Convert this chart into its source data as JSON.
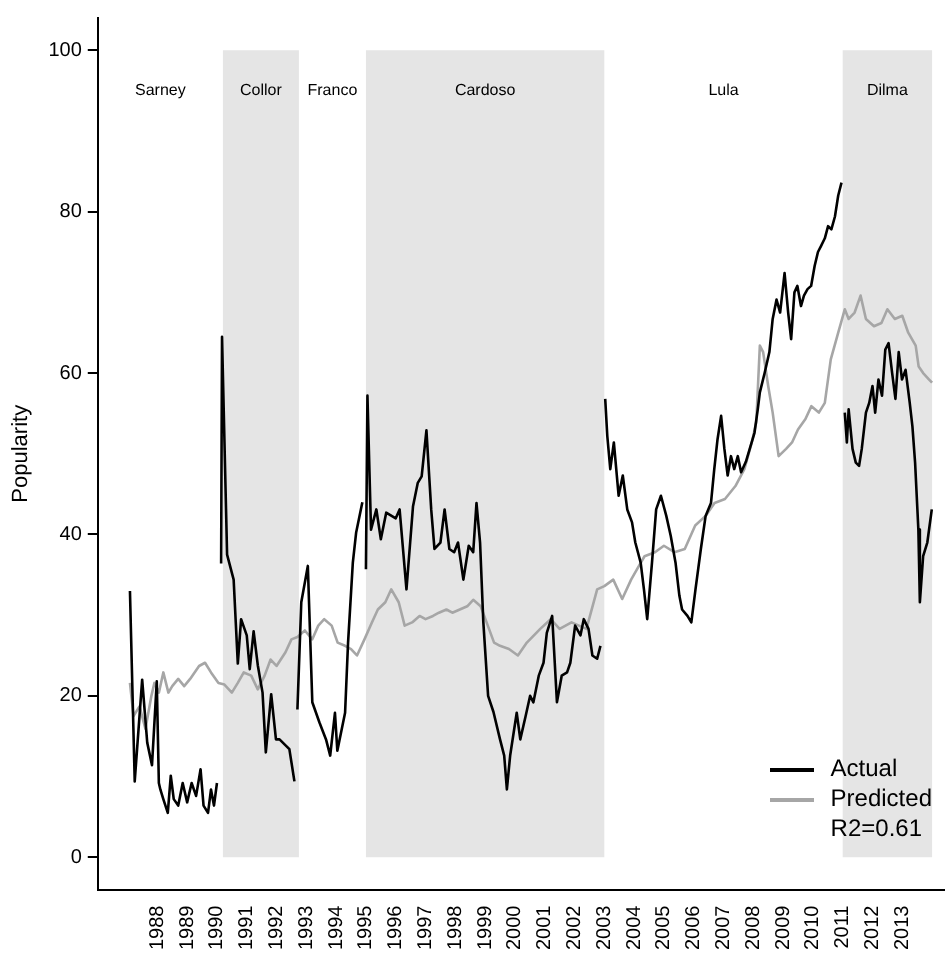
{
  "chart_data": {
    "type": "line",
    "ylabel": "Popularity",
    "xlim": [
      1986,
      2014.4
    ],
    "xticks": [
      1988,
      1989,
      1990,
      1991,
      1992,
      1993,
      1994,
      1995,
      1996,
      1997,
      1998,
      1999,
      2000,
      2001,
      2002,
      2003,
      2004,
      2005,
      2006,
      2007,
      2008,
      2009,
      2010,
      2011,
      2012,
      2013
    ],
    "ylim": [
      -4,
      104
    ],
    "yticks": [
      0,
      20,
      40,
      60,
      80,
      100
    ],
    "series": [
      {
        "name": "Actual",
        "color": "#000000",
        "x": [
          1987.08,
          1987.24,
          1987.49,
          1987.66,
          1987.82,
          1987.98,
          1988.05,
          1988.1,
          1988.2,
          1988.35,
          1988.45,
          1988.55,
          1988.7,
          1988.85,
          1989.0,
          1989.15,
          1989.3,
          1989.45,
          1989.55,
          1989.7,
          1989.8,
          1989.9,
          1990.0,
          1990.08,
          1990.14,
          1990.17,
          1990.34,
          1990.56,
          1990.7,
          1990.81,
          1991.0,
          1991.1,
          1991.23,
          1991.37,
          1991.53,
          1991.64,
          1991.82,
          1991.98,
          1992.1,
          1992.43,
          1992.6,
          1992.65,
          1992.7,
          1992.83,
          1993.05,
          1993.2,
          1993.44,
          1993.66,
          1993.8,
          1993.96,
          1994.04,
          1994.3,
          1994.4,
          1994.56,
          1994.67,
          1994.83,
          1994.88,
          1994.94,
          1995.0,
          1995.05,
          1995.17,
          1995.35,
          1995.5,
          1995.68,
          1996.0,
          1996.13,
          1996.36,
          1996.58,
          1996.74,
          1996.87,
          1997.03,
          1997.19,
          1997.3,
          1997.5,
          1997.64,
          1997.8,
          1997.96,
          1998.09,
          1998.27,
          1998.45,
          1998.6,
          1998.71,
          1998.83,
          1998.94,
          1999.1,
          1999.28,
          1999.5,
          1999.64,
          1999.73,
          1999.84,
          2000.06,
          2000.18,
          2000.36,
          2000.51,
          2000.62,
          2000.8,
          2000.96,
          2001.07,
          2001.25,
          2001.41,
          2001.57,
          2001.75,
          2001.86,
          2002.02,
          2002.2,
          2002.31,
          2002.47,
          2002.6,
          2002.76,
          2002.87,
          2002.95,
          2003.03,
          2003.1,
          2003.2,
          2003.32,
          2003.48,
          2003.62,
          2003.77,
          2003.93,
          2004.04,
          2004.22,
          2004.33,
          2004.44,
          2004.6,
          2004.74,
          2004.9,
          2005.08,
          2005.23,
          2005.39,
          2005.52,
          2005.61,
          2005.79,
          2005.92,
          2006.06,
          2006.24,
          2006.4,
          2006.58,
          2006.69,
          2006.8,
          2006.92,
          2007.03,
          2007.14,
          2007.25,
          2007.36,
          2007.48,
          2007.59,
          2007.75,
          2007.88,
          2008.04,
          2008.15,
          2008.22,
          2008.38,
          2008.54,
          2008.65,
          2008.78,
          2008.9,
          2009.05,
          2009.17,
          2009.27,
          2009.38,
          2009.48,
          2009.6,
          2009.7,
          2009.82,
          2009.94,
          2010.06,
          2010.17,
          2010.28,
          2010.4,
          2010.51,
          2010.62,
          2010.74,
          2010.85,
          2010.96,
          2011.02,
          2011.07,
          2011.14,
          2011.2,
          2011.33,
          2011.44,
          2011.55,
          2011.64,
          2011.78,
          2011.89,
          2012.0,
          2012.09,
          2012.2,
          2012.32,
          2012.43,
          2012.54,
          2012.66,
          2012.77,
          2012.88,
          2012.99,
          2013.11,
          2013.25,
          2013.34,
          2013.43,
          2013.54,
          2013.59,
          2013.7,
          2013.84,
          2013.99
        ],
        "values": [
          33,
          9.4,
          22,
          14.2,
          11.4,
          21.8,
          9.2,
          8.4,
          7.2,
          5.5,
          10.1,
          7.2,
          6.4,
          9.2,
          6.8,
          9.2,
          7.6,
          10.9,
          6.4,
          5.5,
          8.4,
          6.4,
          9.2,
          null,
          36.4,
          64.5,
          37.5,
          34.4,
          24,
          29.5,
          27.5,
          23.3,
          28,
          23.8,
          20.4,
          13,
          20.2,
          14.6,
          14.6,
          13.4,
          9.4,
          null,
          18.3,
          31.6,
          36.1,
          19.2,
          16.7,
          14.6,
          12.6,
          17.9,
          13.2,
          17.9,
          26.6,
          36.5,
          40.2,
          43.1,
          44,
          null,
          35.7,
          57.2,
          40.6,
          43.1,
          39.4,
          42.7,
          42,
          43.1,
          33.2,
          43.5,
          46.4,
          47.2,
          52.9,
          43.1,
          38.2,
          39,
          43.1,
          38.2,
          37.8,
          39,
          34.4,
          38.6,
          37.8,
          43.9,
          39,
          29.1,
          20,
          18,
          14.6,
          12.6,
          8.4,
          12.6,
          17.9,
          14.6,
          17.5,
          20,
          19.2,
          22.5,
          24.1,
          27.8,
          29.9,
          19.2,
          22.5,
          22.9,
          24.1,
          28.7,
          27.5,
          29.5,
          28.3,
          25,
          24.6,
          26.2,
          null,
          56.8,
          52.2,
          48.1,
          51.4,
          44.8,
          47.3,
          43.1,
          41.5,
          39,
          36.5,
          33.2,
          29.5,
          36.5,
          43.1,
          44.8,
          42.3,
          39.8,
          36.5,
          32.4,
          30.7,
          29.9,
          29.1,
          33.2,
          38.2,
          42.3,
          43.9,
          48.1,
          51.8,
          54.7,
          50.6,
          47.3,
          49.7,
          48.1,
          49.7,
          47.7,
          49,
          50.6,
          52.6,
          55.5,
          57.6,
          60,
          62.6,
          66.7,
          69.1,
          67.5,
          72.4,
          67.5,
          64.2,
          70,
          70.8,
          68.3,
          69.6,
          70.4,
          70.8,
          73.3,
          75,
          75.8,
          76.7,
          78.2,
          77.8,
          79.4,
          82,
          83.6,
          null,
          55.1,
          51.4,
          55.5,
          50.6,
          48.9,
          48.5,
          50.6,
          55.1,
          56.3,
          58.4,
          55.1,
          59.2,
          57.2,
          62.9,
          63.7,
          60,
          56.8,
          62.6,
          59.2,
          60.4,
          56.3,
          53.4,
          48.9,
          40.6,
          31.6,
          37.3,
          39,
          43.1
        ]
      },
      {
        "name": "Predicted",
        "color": "#a6a6a6",
        "x": [
          1987.08,
          1987.2,
          1987.4,
          1987.6,
          1987.8,
          1987.9,
          1988.05,
          1988.2,
          1988.37,
          1988.5,
          1988.7,
          1988.9,
          1989.1,
          1989.4,
          1989.6,
          1989.8,
          1990.05,
          1990.25,
          1990.5,
          1990.7,
          1990.9,
          1991.15,
          1991.37,
          1991.6,
          1991.8,
          1992.0,
          1992.3,
          1992.5,
          1992.7,
          1992.95,
          1993.2,
          1993.4,
          1993.6,
          1993.85,
          1994.05,
          1994.3,
          1994.5,
          1994.7,
          1994.95,
          1995.2,
          1995.4,
          1995.65,
          1995.85,
          1996.1,
          1996.3,
          1996.55,
          1996.8,
          1997.0,
          1997.25,
          1997.45,
          1997.7,
          1997.9,
          1998.15,
          1998.4,
          1998.6,
          1998.85,
          1999.05,
          1999.3,
          1999.5,
          1999.8,
          2000.1,
          2000.4,
          2000.85,
          2001.2,
          2001.5,
          2001.9,
          2002.4,
          2002.76,
          2003.0,
          2003.3,
          2003.6,
          2003.9,
          2004.1,
          2004.35,
          2004.7,
          2005.0,
          2005.35,
          2005.7,
          2006.05,
          2006.4,
          2006.7,
          2007.05,
          2007.4,
          2007.7,
          2007.95,
          2008.1,
          2008.22,
          2008.33,
          2008.5,
          2008.65,
          2008.85,
          2009.1,
          2009.3,
          2009.5,
          2009.75,
          2009.95,
          2010.2,
          2010.4,
          2010.6,
          2010.85,
          2011.07,
          2011.2,
          2011.4,
          2011.6,
          2011.78,
          2012.05,
          2012.3,
          2012.5,
          2012.75,
          2013.0,
          2013.2,
          2013.45,
          2013.55,
          2013.7,
          2013.9,
          2014.0
        ],
        "values": [
          21.6,
          17.5,
          18.7,
          15.9,
          20,
          21.6,
          20.4,
          22.9,
          20.4,
          21.2,
          22.1,
          21.2,
          22.1,
          23.7,
          24.1,
          22.9,
          21.6,
          21.4,
          20.4,
          21.6,
          22.9,
          22.5,
          20.8,
          22.5,
          24.5,
          23.7,
          25.4,
          27,
          27.3,
          28.1,
          27,
          28.7,
          29.5,
          28.7,
          26.6,
          26.2,
          25.8,
          25,
          27,
          29.1,
          30.7,
          31.6,
          33.2,
          31.6,
          28.7,
          29.1,
          29.9,
          29.5,
          29.9,
          30.3,
          30.7,
          30.3,
          30.7,
          31.1,
          31.9,
          31.1,
          29.1,
          26.6,
          26.2,
          25.8,
          25,
          26.6,
          28.3,
          29.5,
          28.3,
          29.1,
          28.3,
          33.2,
          33.6,
          34.4,
          32,
          34.4,
          35.7,
          37.3,
          37.8,
          38.6,
          37.8,
          38.2,
          41.1,
          42.3,
          43.9,
          44.4,
          46,
          48.1,
          51.4,
          53.9,
          63.4,
          62.6,
          58.4,
          55.1,
          49.7,
          50.6,
          51.4,
          53,
          54.3,
          55.9,
          55.1,
          56.3,
          61.7,
          65,
          67.9,
          66.7,
          67.5,
          69.6,
          66.7,
          65.8,
          66.2,
          67.9,
          66.7,
          67.1,
          65,
          63.4,
          60.8,
          60,
          59.2,
          58.8
        ]
      }
    ],
    "bands": [
      {
        "axis": "x",
        "from": 1990.2,
        "to": 1992.75,
        "label": "Collor",
        "color": "#e5e5e5"
      },
      {
        "axis": "x",
        "from": 1995.0,
        "to": 2003.0,
        "label": "Cardoso",
        "color": "#e5e5e5"
      },
      {
        "axis": "x",
        "from": 2011.0,
        "to": 2014.0,
        "label": "Dilma",
        "color": "#e5e5e5"
      }
    ],
    "annotations": [
      "Sarney",
      "Franco",
      "Lula",
      "R2=0.61"
    ],
    "legend": "bottom right",
    "marker": "none",
    "line_style": "solid",
    "grid": false
  }
}
